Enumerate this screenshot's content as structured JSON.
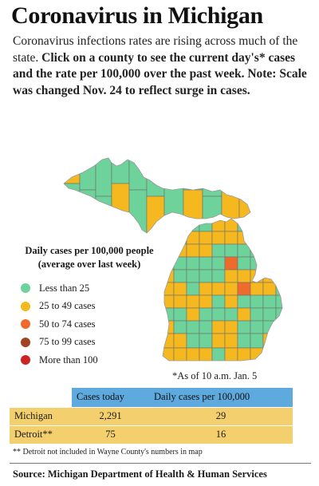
{
  "title": "Coronavirus in Michigan",
  "intro": {
    "plain": "Coronavirus infections rates are rising across much of the state. ",
    "bold": "Click on a county to see the current day's* cases and the rate per 100,000 over the past week. Note: Scale was changed Nov. 24 to reflect surge in cases."
  },
  "legend": {
    "title": "Daily cases per 100,000 people (average over last week)",
    "items": [
      {
        "label": "Less than 25",
        "color": "#6dd39a"
      },
      {
        "label": "25 to 49 cases",
        "color": "#f5b91f"
      },
      {
        "label": "50 to 74 cases",
        "color": "#ee6a2d"
      },
      {
        "label": "75 to 99 cases",
        "color": "#a34322"
      },
      {
        "label": "More than 100",
        "color": "#cc2424"
      }
    ]
  },
  "as_of": "*As of 10 a.m. Jan. 5",
  "table": {
    "headers": [
      "",
      "Cases today",
      "Daily cases per 100,000"
    ],
    "rows": [
      {
        "name": "Michigan",
        "cases": "2,291",
        "rate": "29"
      },
      {
        "name": "Detroit**",
        "cases": "75",
        "rate": "16"
      }
    ]
  },
  "footnote": "** Detroit not included in Wayne County's numbers in map",
  "source": "Source:  Michigan Department of Health & Human Services",
  "map": {
    "county_border_color": "#6e6e6e",
    "counties": [
      {
        "c": 1
      },
      {
        "c": 0
      },
      {
        "c": 0
      },
      {
        "c": 0
      },
      {
        "c": 0
      },
      {
        "c": 0
      },
      {
        "c": 0
      },
      {
        "c": 1
      },
      {
        "c": 0
      },
      {
        "c": 0
      },
      {
        "c": 0
      },
      {
        "c": 1
      },
      {
        "c": 0
      },
      {
        "c": 0
      },
      {
        "c": 0
      },
      {
        "c": 1
      },
      {
        "c": 0
      },
      {
        "c": 0
      },
      {
        "c": 0
      },
      {
        "c": 1
      },
      {
        "c": 1
      },
      {
        "c": 0
      },
      {
        "c": 0
      },
      {
        "c": 0
      },
      {
        "c": 0
      },
      {
        "c": 1
      },
      {
        "c": 1
      },
      {
        "c": 0
      },
      {
        "c": 0
      },
      {
        "c": 1
      },
      {
        "c": 1
      },
      {
        "c": 0
      },
      {
        "c": 0
      },
      {
        "c": 1
      },
      {
        "c": 1
      },
      {
        "c": 1
      },
      {
        "c": 1
      },
      {
        "c": 1
      },
      {
        "c": 1
      },
      {
        "c": 0
      },
      {
        "c": 1
      },
      {
        "c": 1
      },
      {
        "c": 1
      },
      {
        "c": 1
      },
      {
        "c": 1
      },
      {
        "c": 0
      },
      {
        "c": 0
      },
      {
        "c": 0
      },
      {
        "c": 0
      },
      {
        "c": 0
      },
      {
        "c": 0
      },
      {
        "c": 1
      },
      {
        "c": 0
      },
      {
        "c": 0
      },
      {
        "c": 0
      },
      {
        "c": 0
      },
      {
        "c": 2
      },
      {
        "c": 0
      },
      {
        "c": 0
      },
      {
        "c": 0
      },
      {
        "c": 0
      },
      {
        "c": 1
      },
      {
        "c": 0
      },
      {
        "c": 0
      },
      {
        "c": 0
      },
      {
        "c": 0
      },
      {
        "c": 1
      },
      {
        "c": 1
      },
      {
        "c": 1
      },
      {
        "c": 1
      },
      {
        "c": 1
      },
      {
        "c": 1
      },
      {
        "c": 1
      },
      {
        "c": 0
      },
      {
        "c": 1
      },
      {
        "c": 1
      },
      {
        "c": 1
      },
      {
        "c": 2
      },
      {
        "c": 1
      },
      {
        "c": 1
      },
      {
        "c": 0
      },
      {
        "c": 1
      },
      {
        "c": 1
      },
      {
        "c": 1
      },
      {
        "c": 1
      },
      {
        "c": 0
      }
    ]
  }
}
